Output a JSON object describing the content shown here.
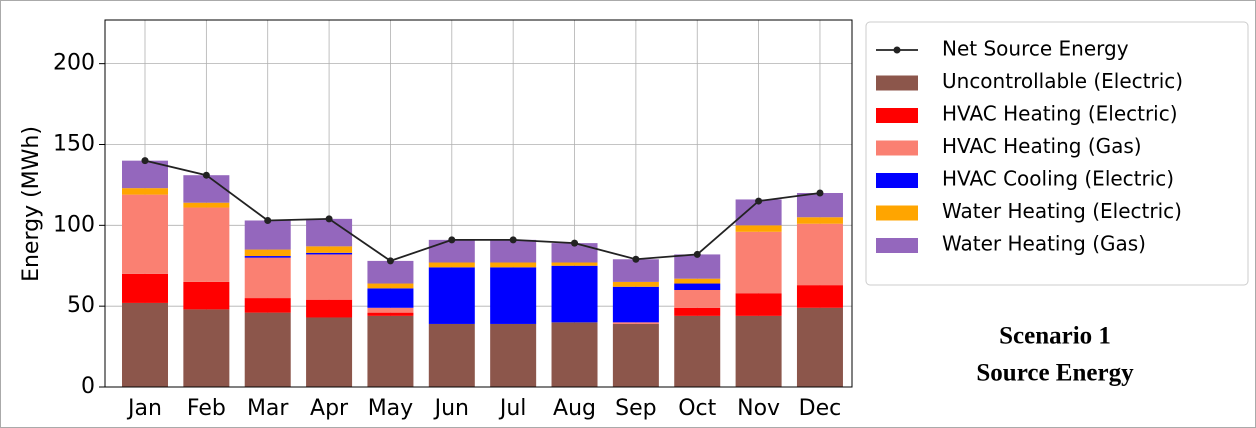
{
  "chart_data": {
    "type": "stacked-bar-line",
    "ylabel": "Energy (MWh)",
    "annotation": [
      "Scenario 1",
      "Source Energy"
    ],
    "categories": [
      "Jan",
      "Feb",
      "Mar",
      "Apr",
      "May",
      "Jun",
      "Jul",
      "Aug",
      "Sep",
      "Oct",
      "Nov",
      "Dec"
    ],
    "line": {
      "name": "Net Source Energy",
      "color": "#222222",
      "values": [
        140,
        131,
        103,
        104,
        78,
        91,
        91,
        89,
        79,
        82,
        115,
        120
      ]
    },
    "series": [
      {
        "name": "Uncontrollable (Electric)",
        "color": "#8c564b",
        "values": [
          52,
          48,
          46,
          43,
          44,
          39,
          39,
          40,
          39,
          44,
          44,
          49
        ]
      },
      {
        "name": "HVAC Heating (Electric)",
        "color": "#ff0000",
        "values": [
          18,
          17,
          9,
          11,
          2,
          0,
          0,
          0,
          0,
          5,
          14,
          14
        ]
      },
      {
        "name": "HVAC Heating (Gas)",
        "color": "#fa8072",
        "values": [
          49,
          46,
          25,
          28,
          3,
          0,
          0,
          0,
          1,
          11,
          38,
          38
        ]
      },
      {
        "name": "HVAC Cooling (Electric)",
        "color": "#0000ff",
        "values": [
          0,
          0,
          1,
          1,
          12,
          35,
          35,
          35,
          22,
          4,
          0,
          0
        ]
      },
      {
        "name": "Water Heating (Electric)",
        "color": "#ffa500",
        "values": [
          4,
          3,
          4,
          4,
          3,
          3,
          3,
          2,
          3,
          3,
          4,
          4
        ]
      },
      {
        "name": "Water Heating (Gas)",
        "color": "#9467bd",
        "values": [
          17,
          17,
          18,
          17,
          14,
          14,
          14,
          12,
          14,
          15,
          16,
          15
        ]
      }
    ],
    "ylim": [
      0,
      227
    ],
    "yticks": [
      0,
      50,
      100,
      150,
      200
    ],
    "grid": true
  }
}
